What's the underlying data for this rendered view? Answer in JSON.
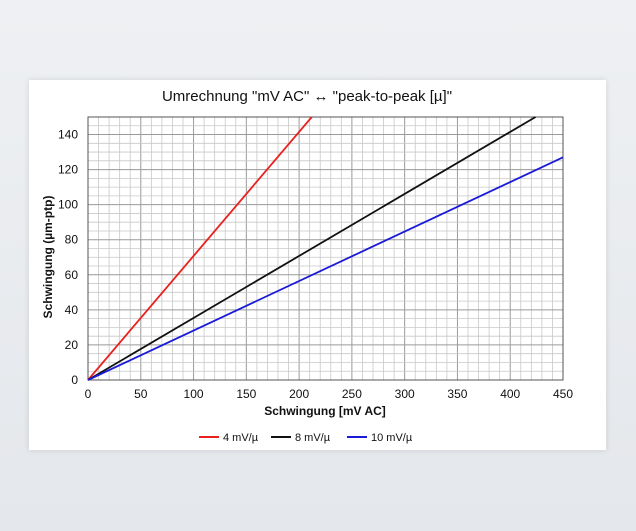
{
  "chart_data": {
    "type": "line",
    "title": "Umrechnung  \"mV AC\"  ↔  \"peak-to-peak [µ]\"",
    "xlabel": "Schwingung [mV AC]",
    "ylabel": "Schwingung (µm-ptp)",
    "xlim": [
      0,
      450
    ],
    "ylim": [
      0,
      150
    ],
    "x_ticks": [
      0,
      50,
      100,
      150,
      200,
      250,
      300,
      350,
      400,
      450
    ],
    "y_ticks": [
      0,
      20,
      40,
      60,
      80,
      100,
      120,
      140
    ],
    "grid": true,
    "legend_position": "bottom",
    "series": [
      {
        "name": "4 mV/µ",
        "color": "#e8201e",
        "x": [
          0,
          212
        ],
        "y": [
          0,
          150
        ]
      },
      {
        "name": "8 mV/µ",
        "color": "#111111",
        "x": [
          0,
          424
        ],
        "y": [
          0,
          150
        ]
      },
      {
        "name": "10 mV/µ",
        "color": "#1a1ad8",
        "x": [
          0,
          450
        ],
        "y": [
          0,
          127
        ]
      }
    ]
  }
}
